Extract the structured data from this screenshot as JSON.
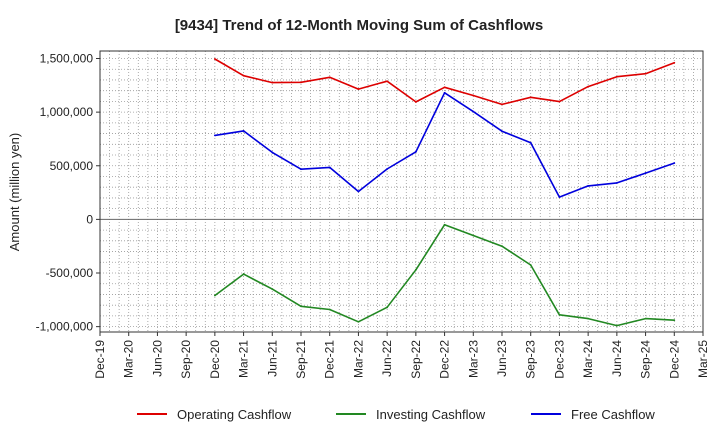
{
  "chart_data": {
    "type": "line",
    "title": "[9434]  Trend of 12-Month Moving Sum of Cashflows",
    "xlabel": "",
    "ylabel": "Amount (million yen)",
    "ylim": [
      -1050000,
      1570000
    ],
    "yticks": [
      1500000,
      1000000,
      500000,
      0,
      -500000,
      -1000000
    ],
    "ytick_labels": [
      "1,500,000",
      "1,000,000",
      "500,000",
      "0",
      "-500,000",
      "-1,000,000"
    ],
    "grid": true,
    "legend_position": "bottom",
    "x_tick_labels": [
      "Dec-19",
      "Mar-20",
      "Jun-20",
      "Sep-20",
      "Dec-20",
      "Mar-21",
      "Jun-21",
      "Sep-21",
      "Dec-21",
      "Mar-22",
      "Jun-22",
      "Sep-22",
      "Dec-22",
      "Mar-23",
      "Jun-23",
      "Sep-23",
      "Dec-23",
      "Mar-24",
      "Jun-24",
      "Sep-24",
      "Dec-24",
      "Mar-25"
    ],
    "x": [
      "Dec-20",
      "Mar-21",
      "Jun-21",
      "Sep-21",
      "Dec-21",
      "Mar-22",
      "Jun-22",
      "Sep-22",
      "Dec-22",
      "Mar-23",
      "Jun-23",
      "Sep-23",
      "Dec-23",
      "Mar-24",
      "Jun-24",
      "Sep-24",
      "Dec-24"
    ],
    "series": [
      {
        "name": "Operating Cashflow",
        "color": "#dd0000",
        "values": [
          1495000,
          1340000,
          1275000,
          1278000,
          1325000,
          1215000,
          1288000,
          1095000,
          1232000,
          1155000,
          1072000,
          1138000,
          1098000,
          1238000,
          1330000,
          1358000,
          1460000
        ]
      },
      {
        "name": "Investing Cashflow",
        "color": "#228822",
        "values": [
          -710000,
          -510000,
          -650000,
          -810000,
          -840000,
          -955000,
          -820000,
          -470000,
          -50000,
          -150000,
          -250000,
          -425000,
          -890000,
          -925000,
          -990000,
          -925000,
          -940000
        ]
      },
      {
        "name": "Free Cashflow",
        "color": "#0000dd",
        "values": [
          783000,
          825000,
          625000,
          468000,
          485000,
          260000,
          470000,
          630000,
          1180000,
          1005000,
          822000,
          715000,
          208000,
          312000,
          340000,
          432000,
          525000
        ]
      }
    ]
  }
}
